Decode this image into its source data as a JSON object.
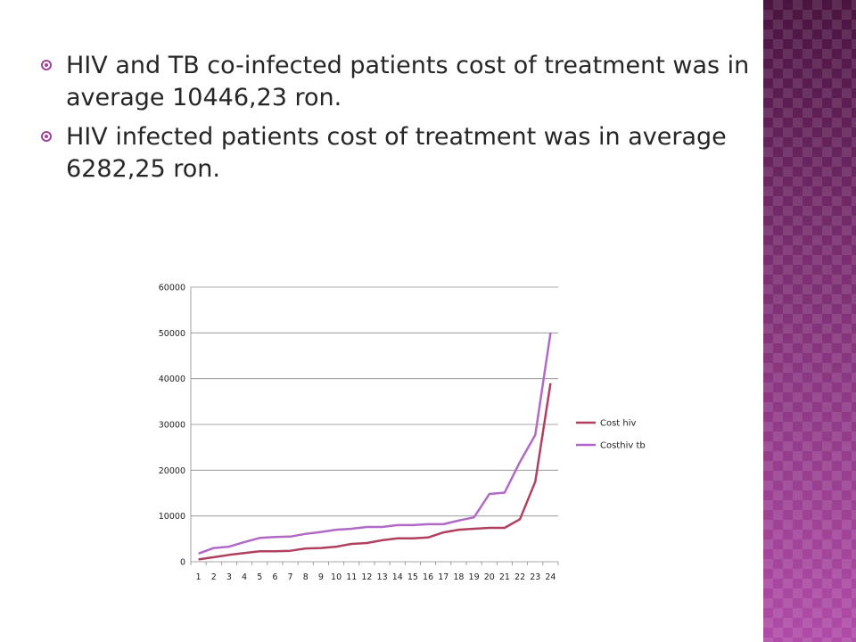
{
  "slide": {
    "bullets": [
      {
        "text": "HIV and TB co-infected patients cost of treatment was in average 10446,23 ron."
      },
      {
        "text": "HIV infected patients cost of treatment was in average 6282,25 ron."
      }
    ],
    "accent_color": "#a0449a"
  },
  "chart_data": {
    "type": "line",
    "title": "",
    "xlabel": "",
    "ylabel": "",
    "ylim": [
      0,
      60000
    ],
    "yticks": [
      0,
      10000,
      20000,
      30000,
      40000,
      50000,
      60000
    ],
    "categories": [
      "1",
      "2",
      "3",
      "4",
      "5",
      "6",
      "7",
      "8",
      "9",
      "10",
      "11",
      "12",
      "13",
      "14",
      "15",
      "16",
      "17",
      "18",
      "19",
      "20",
      "21",
      "22",
      "23",
      "24"
    ],
    "grid": true,
    "legend_position": "right",
    "series": [
      {
        "name": "Cost hiv",
        "color": "#b0405f",
        "values": [
          500,
          1000,
          1500,
          1900,
          2300,
          2300,
          2400,
          2900,
          3000,
          3300,
          3900,
          4100,
          4700,
          5100,
          5100,
          5300,
          6400,
          7000,
          7200,
          7400,
          7400,
          9300,
          17500,
          39000
        ]
      },
      {
        "name": "Costhiv tb",
        "color": "#b06ac6",
        "values": [
          1800,
          3000,
          3300,
          4300,
          5200,
          5400,
          5500,
          6100,
          6500,
          7000,
          7200,
          7600,
          7600,
          8000,
          8000,
          8200,
          8200,
          9000,
          9700,
          14800,
          15100,
          21800,
          27700,
          50000
        ]
      }
    ]
  }
}
